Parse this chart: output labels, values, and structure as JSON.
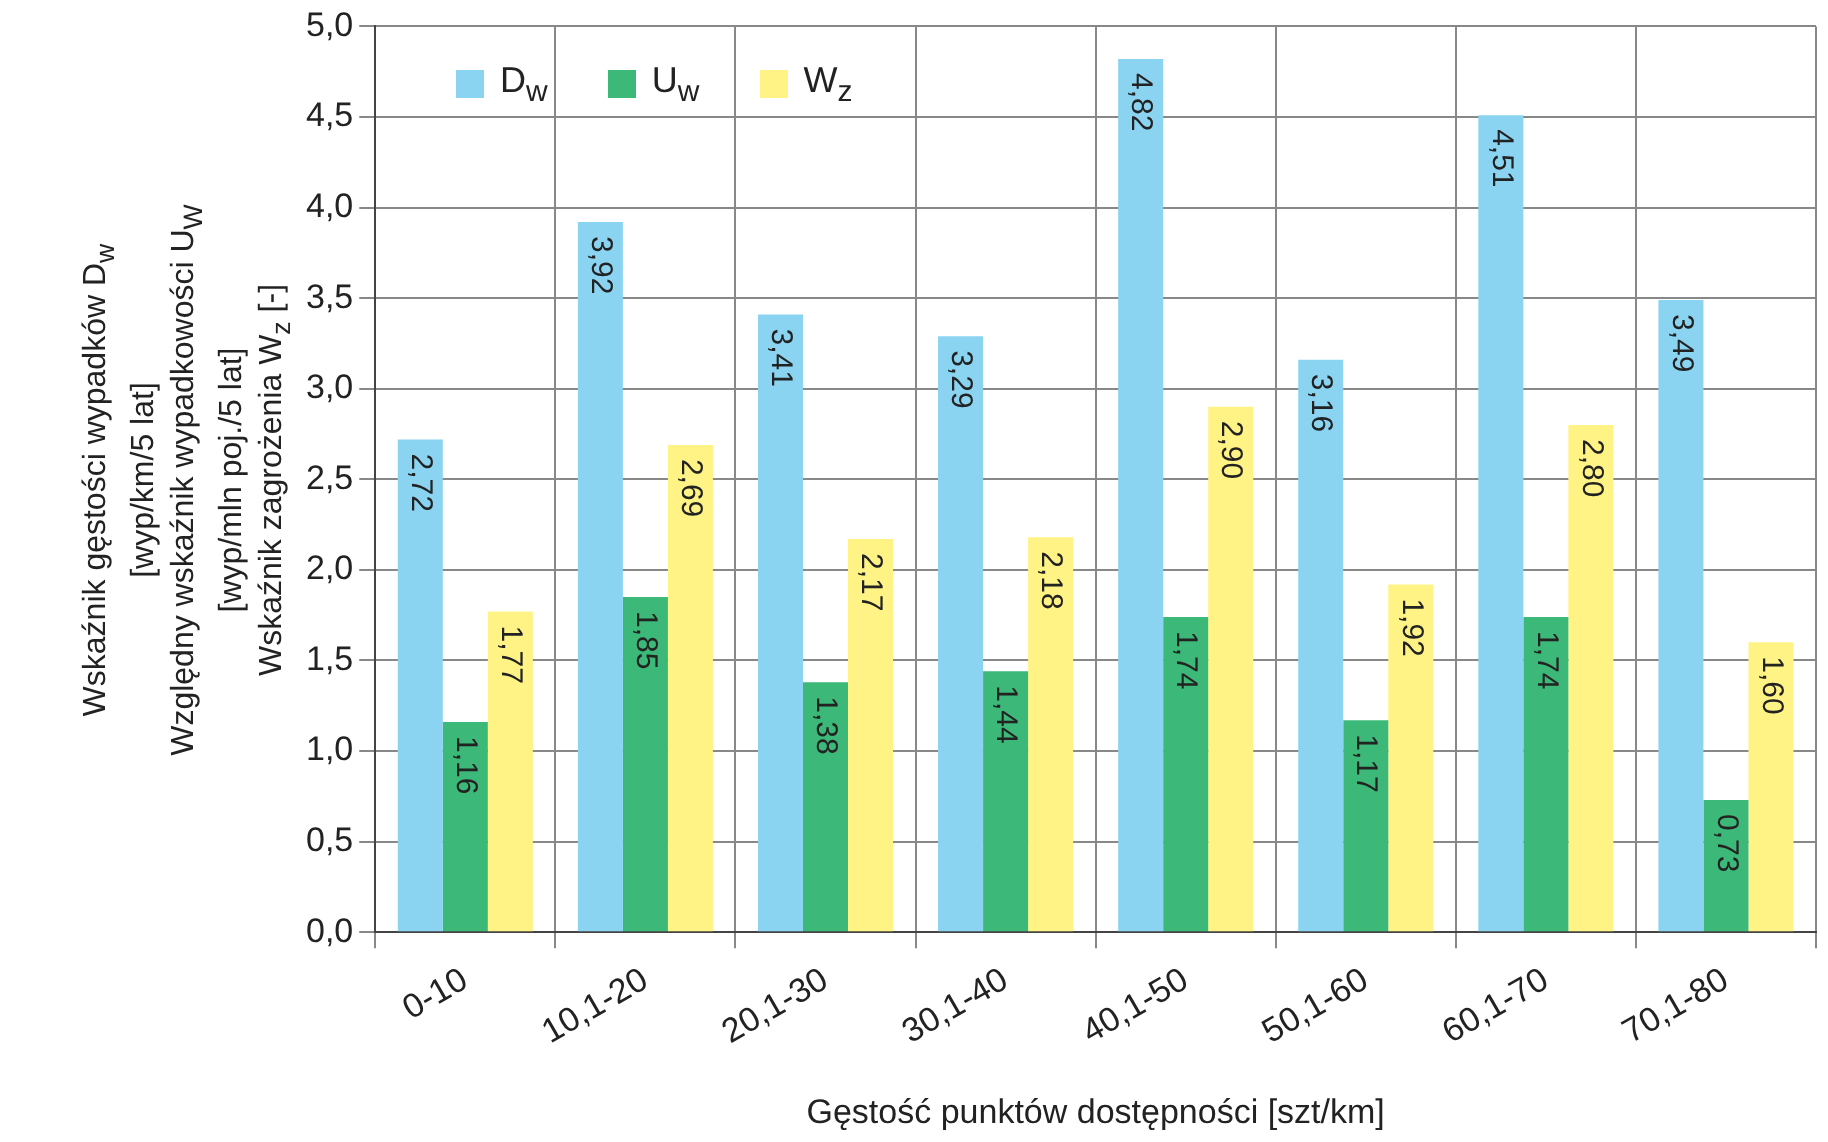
{
  "chart_data": {
    "type": "bar",
    "xlabel": "Gęstość punktów dostępności [szt/km]",
    "ylabel": "Wskaźnik gęstości wypadków D$_{w}$\n[wyp/km/5 lat]\nWzględny wskaźnik wypadkowości U$_{W}$\n[wyp/mln poj./5 lat]\nWskaźnik zagrożenia W$_{z}$ [-]",
    "categories": [
      "0-10",
      "10,1-20",
      "20,1-30",
      "30,1-40",
      "40,1-50",
      "50,1-60",
      "60,1-70",
      "70,1-80"
    ],
    "series": [
      {
        "name": "D$_{w}$",
        "color": "#8ad4f2",
        "values": [
          2.72,
          3.92,
          3.41,
          3.29,
          4.82,
          3.16,
          4.51,
          3.49
        ],
        "value_labels": [
          "2,72",
          "3,92",
          "3,41",
          "3,29",
          "4,82",
          "3,16",
          "4,51",
          "3,49"
        ]
      },
      {
        "name": "U$_{w}$",
        "color": "#3cb878",
        "values": [
          1.16,
          1.85,
          1.38,
          1.44,
          1.74,
          1.17,
          1.74,
          0.73
        ],
        "value_labels": [
          "1,16",
          "1,85",
          "1,38",
          "1,44",
          "1,74",
          "1,17",
          "1,74",
          "0,73"
        ]
      },
      {
        "name": "W$_{z}$",
        "color": "#fff385",
        "values": [
          1.77,
          2.69,
          2.17,
          2.18,
          2.9,
          1.92,
          2.8,
          1.6
        ],
        "value_labels": [
          "1,77",
          "2,69",
          "2,17",
          "2,18",
          "2,90",
          "1,92",
          "2,80",
          "1,60"
        ]
      }
    ],
    "ylim": [
      0,
      5
    ],
    "yticks": [
      {
        "value": 0,
        "label": "0,0"
      },
      {
        "value": 0.5,
        "label": "0,5"
      },
      {
        "value": 1,
        "label": "1,0"
      },
      {
        "value": 1.5,
        "label": "1,5"
      },
      {
        "value": 2,
        "label": "2,0"
      },
      {
        "value": 2.5,
        "label": "2,5"
      },
      {
        "value": 3,
        "label": "3,0"
      },
      {
        "value": 3.5,
        "label": "3,5"
      },
      {
        "value": 4,
        "label": "4,0"
      },
      {
        "value": 4.5,
        "label": "4,5"
      },
      {
        "value": 5,
        "label": "5,0"
      }
    ],
    "grid": true,
    "legend": "top left"
  }
}
